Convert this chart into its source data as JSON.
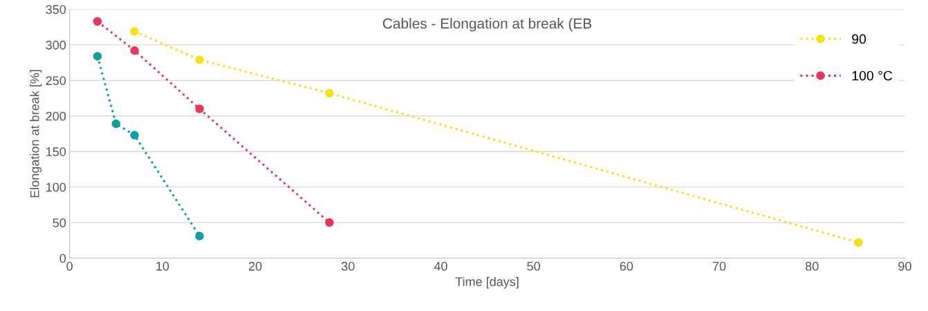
{
  "chart_data": {
    "type": "line",
    "title": "Cables - Elongation at break (EB",
    "xlabel": "Time [days]",
    "ylabel": "Elongation at break [%]",
    "xlim": [
      0,
      90
    ],
    "xticks": [
      0,
      10,
      20,
      30,
      40,
      50,
      60,
      70,
      80,
      90
    ],
    "ylim": [
      0,
      350
    ],
    "yticks": [
      0,
      50,
      100,
      150,
      200,
      250,
      300,
      350
    ],
    "grid": "y",
    "legend": "top right",
    "marker": "circle",
    "line_style": "dotted",
    "series": [
      {
        "color": "#10a0a0",
        "x": [
          3,
          5,
          7,
          14
        ],
        "values": [
          284,
          189,
          173,
          31
        ]
      },
      {
        "name": "100 °C",
        "color": "#e8375e",
        "x": [
          3,
          7,
          14,
          28
        ],
        "values": [
          333,
          292,
          210,
          50
        ]
      },
      {
        "name": "90",
        "color": "#f5e11a",
        "x": [
          7,
          14,
          28,
          85
        ],
        "values": [
          319,
          279,
          232,
          22
        ]
      }
    ]
  }
}
